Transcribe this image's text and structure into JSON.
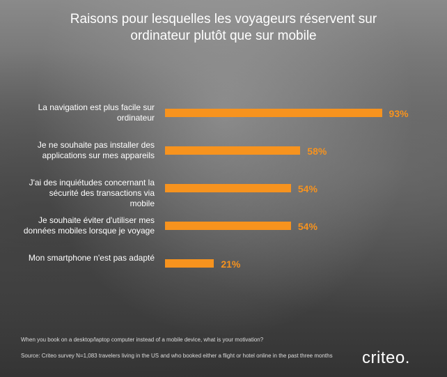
{
  "chart_data": {
    "type": "bar",
    "orientation": "horizontal",
    "title": "Raisons pour lesquelles les voyageurs réservent sur ordinateur plutôt que sur mobile",
    "categories": [
      "La navigation est plus facile sur ordinateur",
      "Je ne souhaite pas installer des applications sur mes appareils",
      "J'ai des inquiétudes concernant la sécurité des transactions via mobile",
      "Je souhaite éviter d'utiliser mes données mobiles lorsque je voyage",
      "Mon smartphone n'est pas adapté"
    ],
    "values": [
      93,
      58,
      54,
      54,
      21
    ],
    "value_labels": [
      "93%",
      "58%",
      "54%",
      "54%",
      "21%"
    ],
    "color": "#f7931e",
    "question": "When you book on a desktop/laptop computer instead of a mobile device, what is your motivation?",
    "source": "Source: Criteo survey N=1,083 travelers living in the US and who booked either a flight or hotel online in the past three months",
    "logo": "criteo."
  }
}
